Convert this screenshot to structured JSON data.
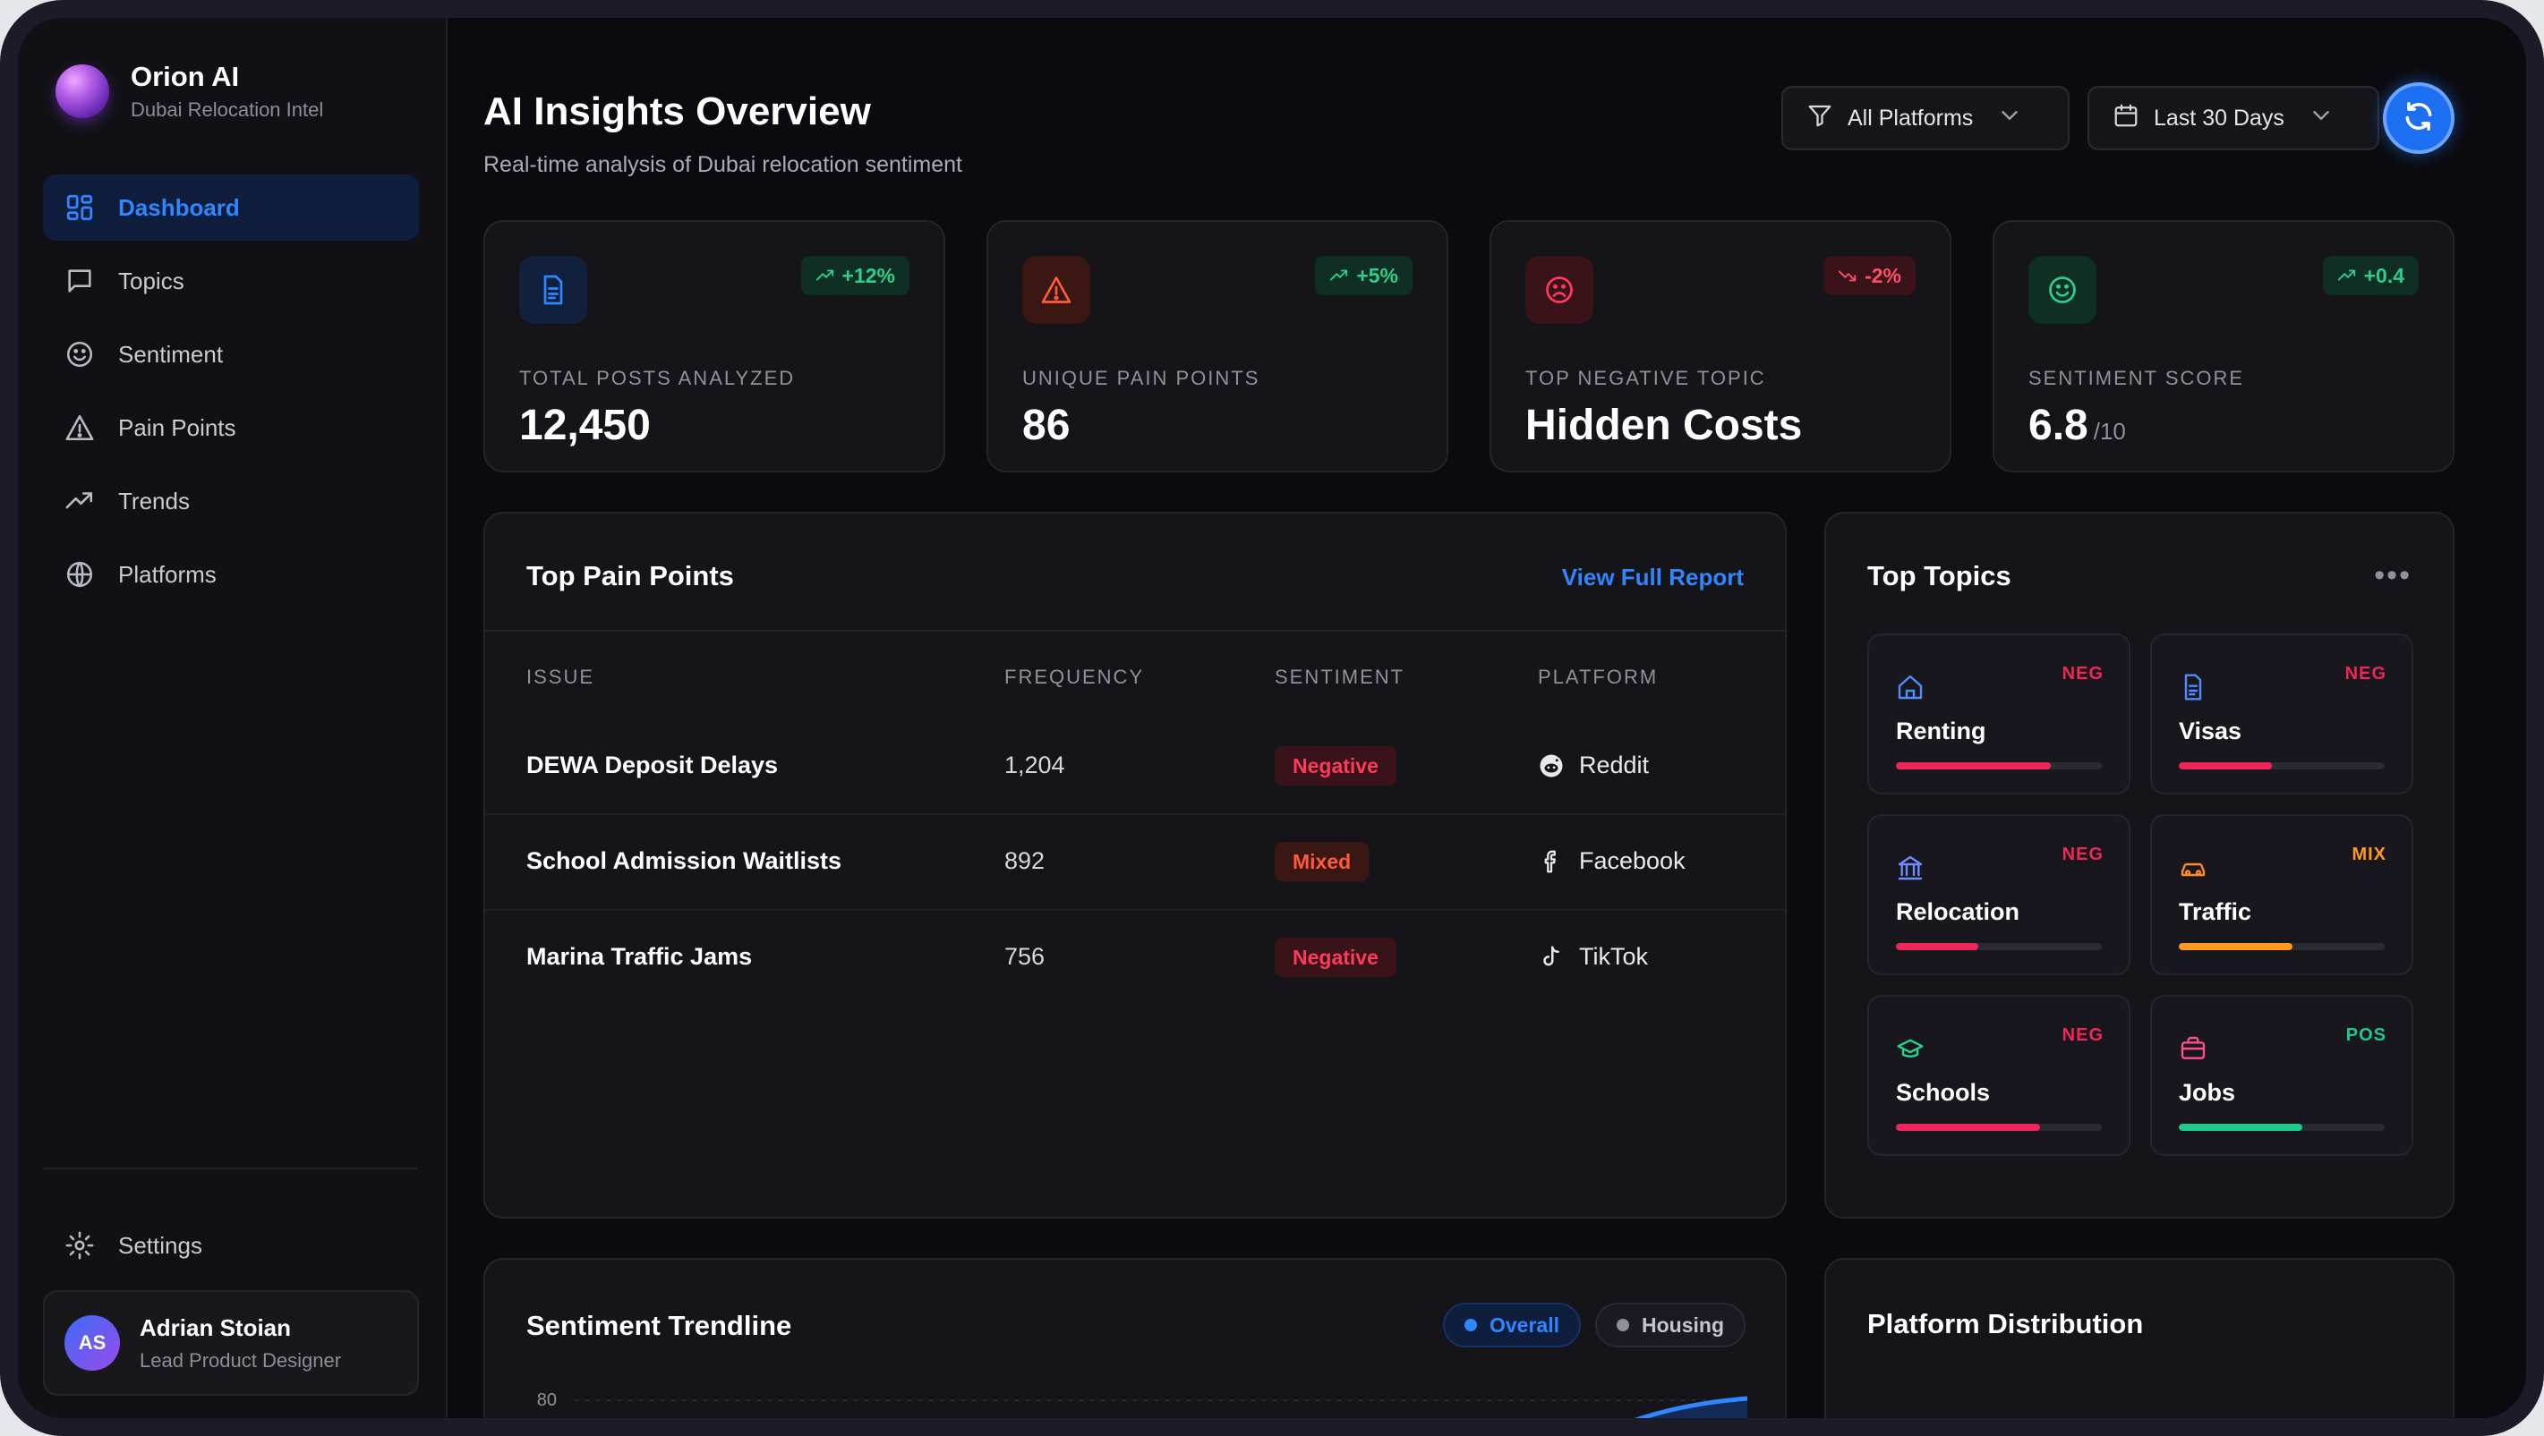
{
  "brand": {
    "title": "Orion AI",
    "subtitle": "Dubai Relocation Intel"
  },
  "nav": {
    "items": [
      {
        "label": "Dashboard",
        "icon": "dashboard-icon",
        "active": true
      },
      {
        "label": "Topics",
        "icon": "message-square-icon"
      },
      {
        "label": "Sentiment",
        "icon": "smile-icon"
      },
      {
        "label": "Pain Points",
        "icon": "alert-triangle-icon"
      },
      {
        "label": "Trends",
        "icon": "trending-up-icon"
      },
      {
        "label": "Platforms",
        "icon": "globe-icon"
      }
    ],
    "settings_label": "Settings"
  },
  "user": {
    "initials": "AS",
    "name": "Adrian Stoian",
    "role": "Lead Product Designer"
  },
  "header": {
    "title": "AI Insights Overview",
    "subtitle": "Real-time analysis of Dubai relocation sentiment",
    "platform_filter": "All Platforms",
    "date_filter": "Last 30 Days"
  },
  "stats": [
    {
      "label": "TOTAL POSTS ANALYZED",
      "value": "12,450",
      "suffix": "",
      "change": "+12%",
      "direction": "up",
      "icon": "document-icon",
      "icon_color": "#2f86ff",
      "icon_bg": "#10203d"
    },
    {
      "label": "UNIQUE PAIN POINTS",
      "value": "86",
      "suffix": "",
      "change": "+5%",
      "direction": "up",
      "icon": "warning-icon",
      "icon_color": "#ff5a3a",
      "icon_bg": "#3a1712"
    },
    {
      "label": "TOP NEGATIVE TOPIC",
      "value": "Hidden Costs",
      "suffix": "",
      "change": "-2%",
      "direction": "down",
      "icon": "frown-icon",
      "icon_color": "#ff3b5c",
      "icon_bg": "#3a1219"
    },
    {
      "label": "SENTIMENT SCORE",
      "value": "6.8",
      "suffix": "/10",
      "change": "+0.4",
      "direction": "up",
      "icon": "smile-icon",
      "icon_color": "#2ccf8b",
      "icon_bg": "#0f2e24"
    }
  ],
  "pain_points": {
    "title": "Top Pain Points",
    "link": "View Full Report",
    "columns": [
      "ISSUE",
      "FREQUENCY",
      "SENTIMENT",
      "PLATFORM"
    ],
    "rows": [
      {
        "issue": "DEWA Deposit Delays",
        "frequency": "1,204",
        "sentiment": "Negative",
        "platform": "Reddit",
        "platform_icon": "reddit-icon"
      },
      {
        "issue": "School Admission Waitlists",
        "frequency": "892",
        "sentiment": "Mixed",
        "platform": "Facebook",
        "platform_icon": "facebook-icon"
      },
      {
        "issue": "Marina Traffic Jams",
        "frequency": "756",
        "sentiment": "Negative",
        "platform": "TikTok",
        "platform_icon": "tiktok-icon"
      }
    ]
  },
  "topics": {
    "title": "Top Topics",
    "items": [
      {
        "name": "Renting",
        "tag": "NEG",
        "level": 0.75,
        "icon": "home-icon",
        "icon_color": "#4f8cff",
        "color": "#f0265a"
      },
      {
        "name": "Visas",
        "tag": "NEG",
        "level": 0.45,
        "icon": "document-icon",
        "icon_color": "#4f8cff",
        "color": "#f0265a"
      },
      {
        "name": "Relocation",
        "tag": "NEG",
        "level": 0.4,
        "icon": "bank-icon",
        "icon_color": "#6f8cff",
        "color": "#f0265a"
      },
      {
        "name": "Traffic",
        "tag": "MIX",
        "level": 0.55,
        "icon": "car-icon",
        "icon_color": "#ff8a1f",
        "color": "#ff9a1f"
      },
      {
        "name": "Schools",
        "tag": "NEG",
        "level": 0.7,
        "icon": "graduation-cap-icon",
        "icon_color": "#2ccf8b",
        "color": "#f0265a"
      },
      {
        "name": "Jobs",
        "tag": "POS",
        "level": 0.6,
        "icon": "briefcase-icon",
        "icon_color": "#ff4d8d",
        "color": "#1fc98a"
      }
    ]
  },
  "trendline": {
    "title": "Sentiment Trendline",
    "legend": [
      {
        "label": "Overall",
        "color": "#2f86ff"
      },
      {
        "label": "Housing",
        "color": "#8f919b"
      }
    ],
    "y_tick": "80"
  },
  "platform_distribution": {
    "title": "Platform Distribution"
  },
  "colors": {
    "accent": "#2f86ff",
    "negative": "#f0265a",
    "mixed": "#ff9a1f",
    "positive": "#1fc98a"
  }
}
